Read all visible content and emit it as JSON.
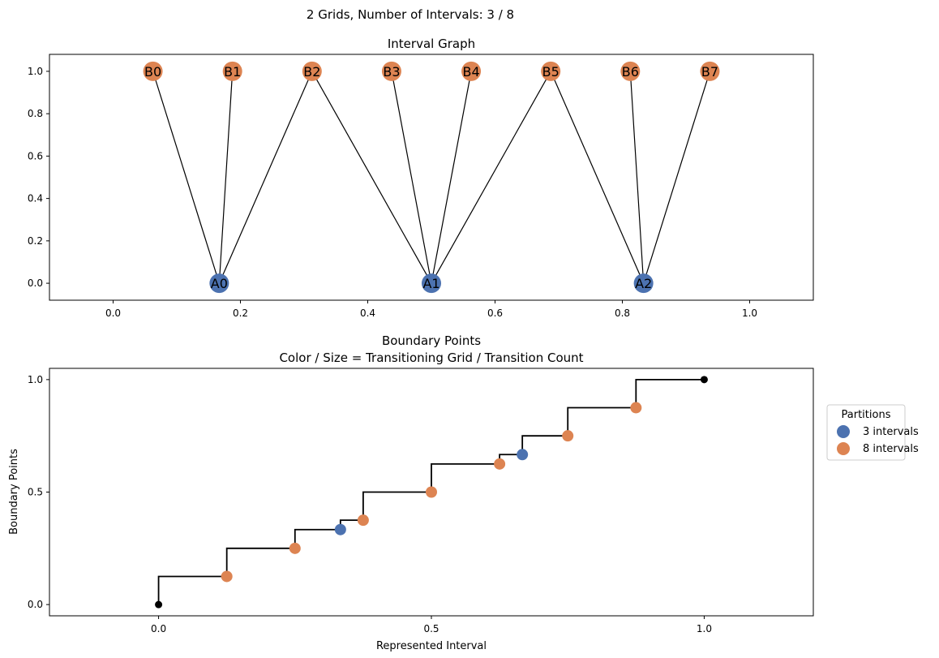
{
  "suptitle": "2 Grids, Number of Intervals: 3 / 8",
  "colors": {
    "grid_a": "#4c72b0",
    "grid_b": "#dd8452",
    "line": "#000000",
    "endpoint": "#000000"
  },
  "chart_data": [
    {
      "type": "network",
      "title": "Interval Graph",
      "xlim": [
        -0.1,
        1.1
      ],
      "ylim": [
        -0.08,
        1.08
      ],
      "xticks": [
        "0.0",
        "0.2",
        "0.4",
        "0.6",
        "0.8",
        "1.0"
      ],
      "yticks": [
        "0.0",
        "0.2",
        "0.4",
        "0.6",
        "0.8",
        "1.0"
      ],
      "nodes": [
        {
          "id": "A0",
          "x": 0.1667,
          "y": 0,
          "grid": "a"
        },
        {
          "id": "A1",
          "x": 0.5,
          "y": 0,
          "grid": "a"
        },
        {
          "id": "A2",
          "x": 0.8333,
          "y": 0,
          "grid": "a"
        },
        {
          "id": "B0",
          "x": 0.0625,
          "y": 1,
          "grid": "b"
        },
        {
          "id": "B1",
          "x": 0.1875,
          "y": 1,
          "grid": "b"
        },
        {
          "id": "B2",
          "x": 0.3125,
          "y": 1,
          "grid": "b"
        },
        {
          "id": "B3",
          "x": 0.4375,
          "y": 1,
          "grid": "b"
        },
        {
          "id": "B4",
          "x": 0.5625,
          "y": 1,
          "grid": "b"
        },
        {
          "id": "B5",
          "x": 0.6875,
          "y": 1,
          "grid": "b"
        },
        {
          "id": "B6",
          "x": 0.8125,
          "y": 1,
          "grid": "b"
        },
        {
          "id": "B7",
          "x": 0.9375,
          "y": 1,
          "grid": "b"
        }
      ],
      "edges": [
        [
          "A0",
          "B0"
        ],
        [
          "A0",
          "B1"
        ],
        [
          "A0",
          "B2"
        ],
        [
          "A1",
          "B2"
        ],
        [
          "A1",
          "B3"
        ],
        [
          "A1",
          "B4"
        ],
        [
          "A1",
          "B5"
        ],
        [
          "A2",
          "B5"
        ],
        [
          "A2",
          "B6"
        ],
        [
          "A2",
          "B7"
        ]
      ]
    },
    {
      "type": "step",
      "title": "Boundary Points",
      "subtitle": "Color / Size = Transitioning Grid / Transition Count",
      "xlabel": "Represented Interval",
      "ylabel": "Boundary Points",
      "xlim": [
        -0.2,
        1.2
      ],
      "ylim": [
        -0.05,
        1.05
      ],
      "xticks": [
        "0.0",
        "0.5",
        "1.0"
      ],
      "yticks": [
        "0.0",
        "0.5",
        "1.0"
      ],
      "endpoints": [
        [
          0,
          0
        ],
        [
          1,
          1
        ]
      ],
      "points": [
        {
          "x": 0.125,
          "y": 0.125,
          "grid": "b"
        },
        {
          "x": 0.25,
          "y": 0.25,
          "grid": "b"
        },
        {
          "x": 0.3333,
          "y": 0.3333,
          "grid": "a"
        },
        {
          "x": 0.375,
          "y": 0.375,
          "grid": "b"
        },
        {
          "x": 0.5,
          "y": 0.5,
          "grid": "b"
        },
        {
          "x": 0.625,
          "y": 0.625,
          "grid": "b"
        },
        {
          "x": 0.6667,
          "y": 0.6667,
          "grid": "a"
        },
        {
          "x": 0.75,
          "y": 0.75,
          "grid": "b"
        },
        {
          "x": 0.875,
          "y": 0.875,
          "grid": "b"
        }
      ],
      "legend": {
        "title": "Partitions",
        "placement": "right-outside",
        "items": [
          {
            "label": "3 intervals",
            "grid": "a"
          },
          {
            "label": "8 intervals",
            "grid": "b"
          }
        ]
      }
    }
  ]
}
